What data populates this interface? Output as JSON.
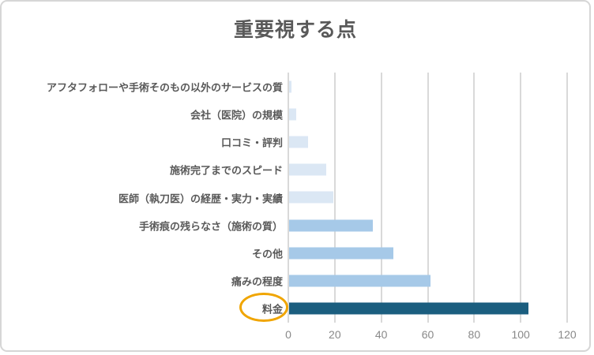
{
  "chart_data": {
    "type": "bar",
    "orientation": "horizontal",
    "title": "重要視する点",
    "categories": [
      "アフタフォローや手術そのもの以外のサービスの質",
      "会社（医院）の規模",
      "口コミ・評判",
      "施術完了までのスピード",
      "医師（執刀医）の経歴・実力・実績",
      "手術痕の残らなさ（施術の質）",
      "その他",
      "痛みの程度",
      "料金"
    ],
    "values": [
      1,
      3,
      8,
      16,
      19,
      36,
      45,
      61,
      103
    ],
    "bar_colors": [
      "#dbe7f4",
      "#dbe7f4",
      "#dbe7f4",
      "#dbe7f4",
      "#dbe7f4",
      "#a6c9e8",
      "#a6c9e8",
      "#a6c9e8",
      "#1b5e7f"
    ],
    "x_ticks": [
      "0",
      "20",
      "40",
      "60",
      "80",
      "100",
      "120"
    ],
    "xlim": [
      0,
      120
    ],
    "grid": true,
    "legend": "none",
    "highlighted_category": "料金",
    "highlight_color": "#f0a500"
  },
  "colors": {
    "title_text": "#595959",
    "category_text": "#595959",
    "tick_text": "#898989",
    "gridline": "#d9d9d9",
    "frame_border": "#d6d6d6",
    "background": "#ffffff"
  }
}
